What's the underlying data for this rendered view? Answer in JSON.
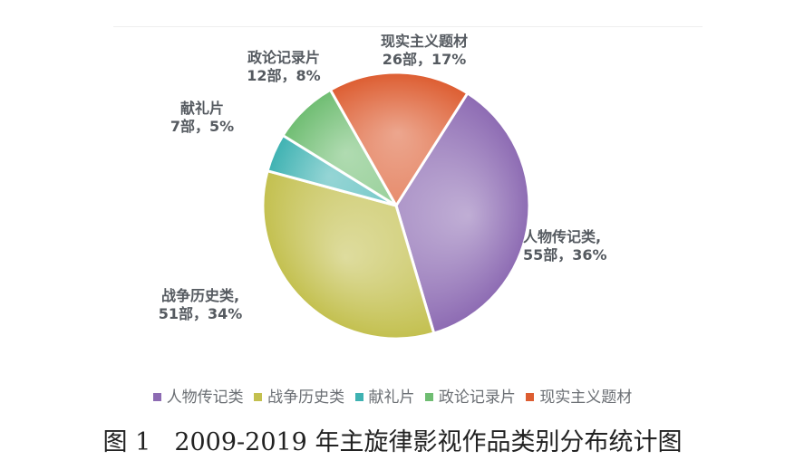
{
  "chart_data": {
    "type": "pie",
    "categories": [
      "人物传记类",
      "战争历史类",
      "献礼片",
      "政论记录片",
      "现实主义题材"
    ],
    "values": [
      55,
      51,
      7,
      12,
      26
    ],
    "percents": [
      "36%",
      "34%",
      "5%",
      "8%",
      "17%"
    ],
    "slice_labels": [
      [
        "人物传记类,",
        "55部，36%"
      ],
      [
        "战争历史类,",
        "51部，34%"
      ],
      [
        "献礼片",
        "7部，5%"
      ],
      [
        "政论记录片",
        "12部，8%"
      ],
      [
        "现实主义题材",
        "26部，17%"
      ]
    ],
    "colors": [
      "#8d6bb3",
      "#c3c04f",
      "#3fb2b2",
      "#6fbd72",
      "#dd5d31"
    ],
    "legend": [
      "人物传记类",
      "战争历史类",
      "献礼片",
      "政论记录片",
      "现实主义题材"
    ],
    "legend_position": "bottom"
  },
  "caption": {
    "figure_number": "图 1",
    "title": "2009-2019 年主旋律影视作品类别分布统计图"
  }
}
